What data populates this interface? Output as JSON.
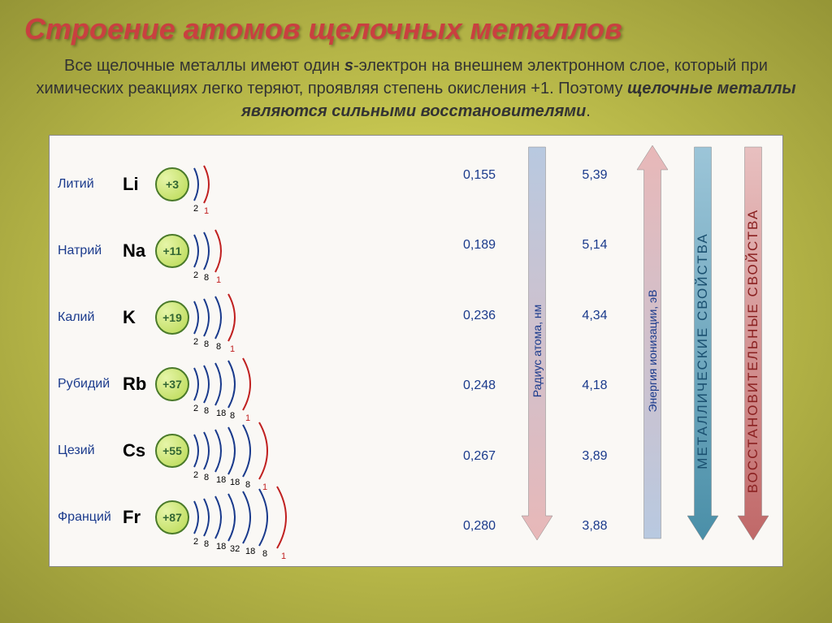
{
  "title": "Строение атомов щелочных металлов",
  "description_parts": {
    "p1": "Все щелочные металлы имеют один ",
    "b1": "s",
    "p2": "-электрон на внешнем электронном слое, который при химических реакциях легко теряют, проявляя степень окисления +1. Поэтому ",
    "b2": "щелочные металлы являются сильными восстановителями",
    "p3": "."
  },
  "elements": [
    {
      "name": "Литий",
      "symbol": "Li",
      "charge": "+3",
      "shells": [
        2,
        1
      ],
      "radius": "0,155",
      "ion": "5,39"
    },
    {
      "name": "Натрий",
      "symbol": "Na",
      "charge": "+11",
      "shells": [
        2,
        8,
        1
      ],
      "radius": "0,189",
      "ion": "5,14"
    },
    {
      "name": "Калий",
      "symbol": "K",
      "charge": "+19",
      "shells": [
        2,
        8,
        8,
        1
      ],
      "radius": "0,236",
      "ion": "4,34"
    },
    {
      "name": "Рубидий",
      "symbol": "Rb",
      "charge": "+37",
      "shells": [
        2,
        8,
        18,
        8,
        1
      ],
      "radius": "0,248",
      "ion": "4,18"
    },
    {
      "name": "Цезий",
      "symbol": "Cs",
      "charge": "+55",
      "shells": [
        2,
        8,
        18,
        18,
        8,
        1
      ],
      "radius": "0,267",
      "ion": "3,89"
    },
    {
      "name": "Франций",
      "symbol": "Fr",
      "charge": "+87",
      "shells": [
        2,
        8,
        18,
        32,
        18,
        8,
        1
      ],
      "radius": "0,280",
      "ion": "3,88"
    }
  ],
  "arrows": [
    {
      "label": "Радиус атома, нм",
      "dir": "down",
      "grad_top": "#b8c9e0",
      "grad_bot": "#e8b8b8",
      "txtcolor": "#1a3a8c",
      "size": "small"
    },
    {
      "label": "Энергия ионизации, эВ",
      "dir": "up",
      "grad_top": "#e8b8b8",
      "grad_bot": "#b8c9e0",
      "txtcolor": "#1a3a8c",
      "size": "small"
    },
    {
      "label": "МЕТАЛЛИЧЕСКИЕ СВОЙСТВА",
      "dir": "down",
      "grad_top": "#9cc5d8",
      "grad_bot": "#4a8fa8",
      "txtcolor": "#1a5070",
      "size": "big"
    },
    {
      "label": "ВОССТАНОВИТЕЛЬНЫЕ СВОЙСТВА",
      "dir": "down",
      "grad_top": "#e8c0c0",
      "grad_bot": "#c06868",
      "txtcolor": "#8a2020",
      "size": "big"
    }
  ],
  "colors": {
    "shell_inner": "#1a3a8c",
    "shell_outer": "#c02020"
  }
}
